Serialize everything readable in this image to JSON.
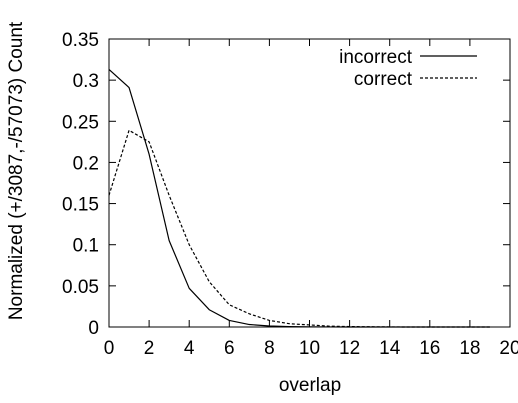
{
  "chart_data": {
    "type": "line",
    "title": "",
    "xlabel": "overlap",
    "ylabel": "Normalized (+/3087,-/57073) Count",
    "xlim": [
      0,
      20
    ],
    "ylim": [
      0,
      0.35
    ],
    "xticks": [
      0,
      2,
      4,
      6,
      8,
      10,
      12,
      14,
      16,
      18,
      20
    ],
    "yticks": [
      0,
      0.05,
      0.1,
      0.15,
      0.2,
      0.25,
      0.3,
      0.35
    ],
    "xtick_labels": [
      "0",
      "2",
      "4",
      "6",
      "8",
      "10",
      "12",
      "14",
      "16",
      "18",
      "20"
    ],
    "ytick_labels": [
      "0",
      "0.05",
      "0.1",
      "0.15",
      "0.2",
      "0.25",
      "0.3",
      "0.35"
    ],
    "grid": false,
    "legend_position": "top-right",
    "x": [
      0,
      1,
      2,
      3,
      4,
      5,
      6,
      7,
      8,
      9,
      10,
      11,
      12,
      13,
      14,
      15,
      16,
      17,
      18,
      19
    ],
    "series": [
      {
        "name": "incorrect",
        "style": "solid",
        "color": "#000000",
        "values": [
          0.313,
          0.291,
          0.21,
          0.105,
          0.047,
          0.021,
          0.008,
          0.003,
          0.0012,
          0.0005,
          0.0002,
          0.0001,
          0,
          0,
          0,
          0,
          0,
          0,
          0,
          0
        ]
      },
      {
        "name": "correct",
        "style": "dashed",
        "color": "#000000",
        "values": [
          0.16,
          0.239,
          0.225,
          0.16,
          0.1,
          0.055,
          0.027,
          0.016,
          0.008,
          0.004,
          0.0025,
          0.001,
          0.0005,
          0.0003,
          0.0001,
          0,
          0,
          0,
          0,
          0
        ]
      }
    ]
  }
}
